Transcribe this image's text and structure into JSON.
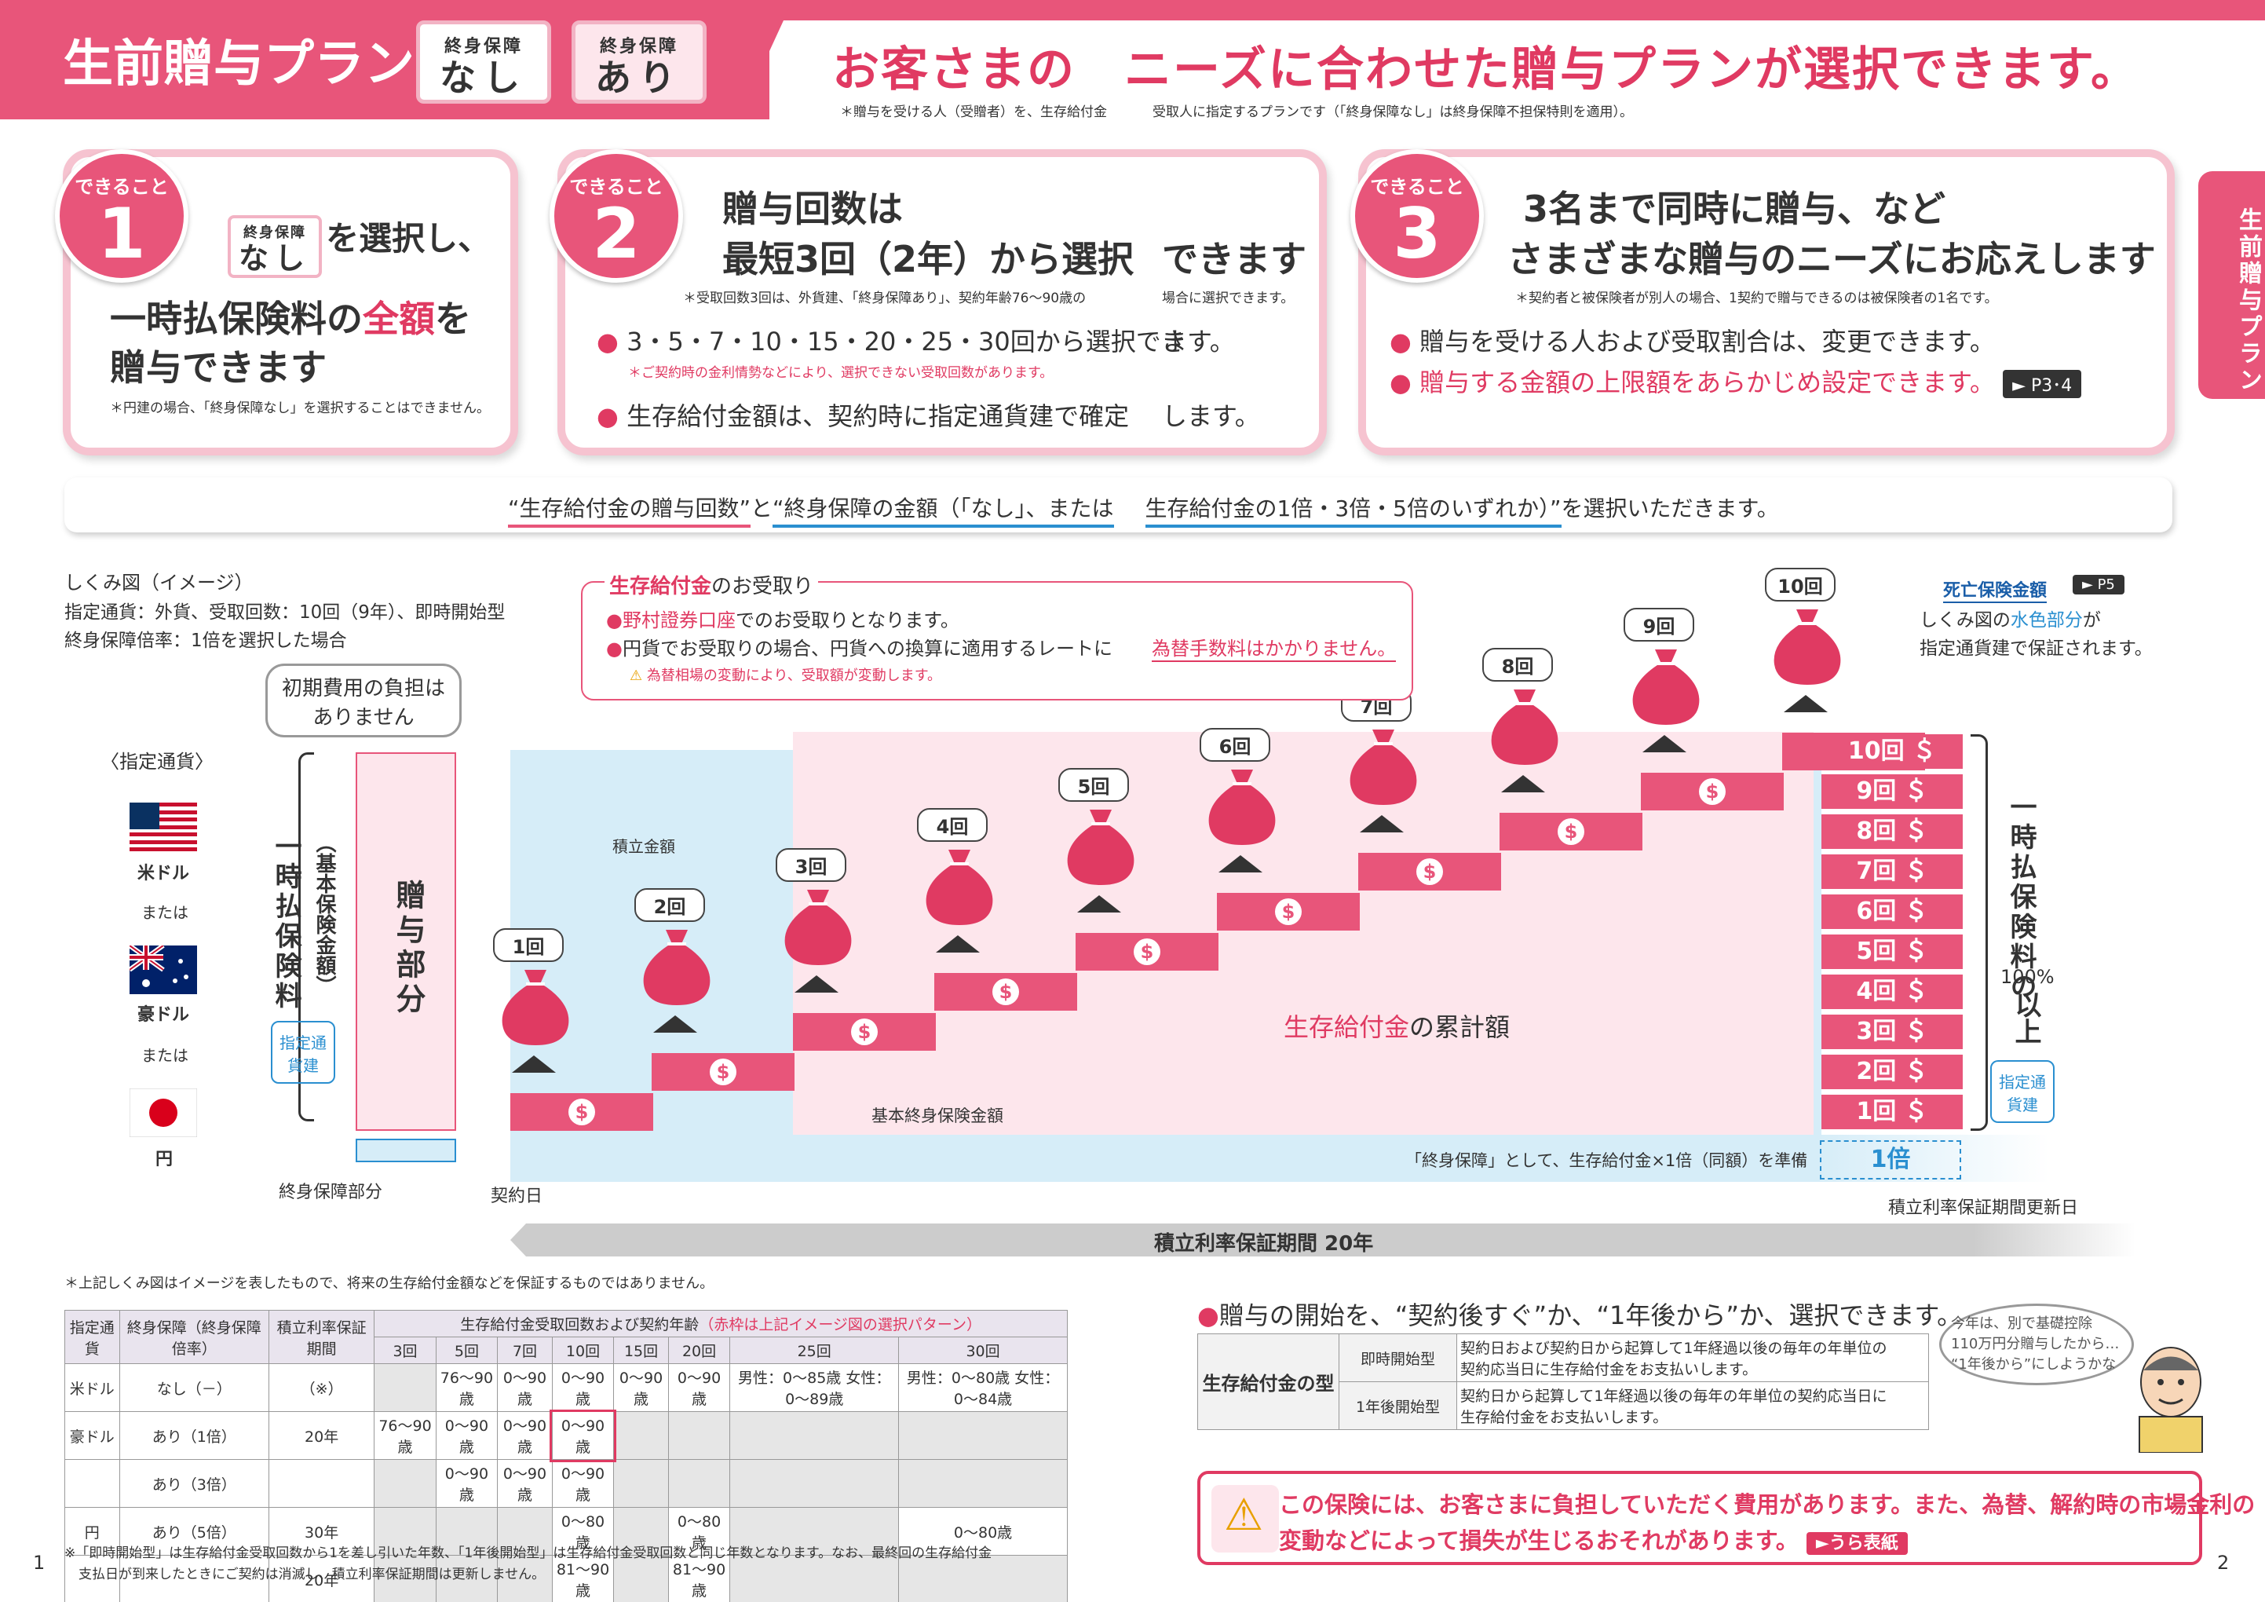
{
  "header": {
    "title": "生前贈与プラン",
    "tag1_small": "終身保障",
    "tag1_big": "なし",
    "tag2_small": "終身保障",
    "tag2_big": "あり",
    "headline": "お客さまの　ニーズに合わせた贈与プランが選択できます。",
    "note1": "＊贈与を受ける人（受贈者）を、生存給付金",
    "note2": "受取人に指定するプランです（「終身保障なし」は終身保障不担保特則を適用）。"
  },
  "side_tab": "生前贈与プラン",
  "cards": [
    {
      "badge": "できること",
      "num": "1",
      "chip_small": "終身保障",
      "chip_big": "なし",
      "line1": "を選択し、",
      "line2a": "一時払保険料の",
      "line2b": "全額",
      "line2c": "を",
      "line3": "贈与できます",
      "note": "＊円建の場合、「終身保障なし」を選択することはできません。"
    },
    {
      "badge": "できること",
      "num": "2",
      "line1": "贈与回数は",
      "line2": "最短3回（2年）から選択",
      "line2b": "できます",
      "note": "＊受取回数3回は、外貨建、「終身保障あり」、契約年齢76～90歳の",
      "note_b": "場合に選択できます。",
      "bullet1": "3・5・7・10・15・20・25・30回から選択でき",
      "bullet1b": "ます。",
      "bullet1_note": "＊ご契約時の金利情勢などにより、選択できない受取回数があります。",
      "bullet2": "生存給付金額は、契約時に指定通貨建で確定",
      "bullet2b": "します。"
    },
    {
      "badge": "できること",
      "num": "3",
      "line1": "3名まで同時に贈与、など",
      "line2": "さまざまな贈与のニーズにお応えします",
      "note": "＊契約者と被保険者が別人の場合、1契約で贈与できるのは被保険者の1名です。",
      "bullet1": "贈与を受ける人および受取割合は、変更できます。",
      "bullet2": "贈与する金額の上限額をあらかじめ設定できます。",
      "ref": "► P3･4"
    }
  ],
  "select_bar": {
    "part1": "“生存給付金の贈与回数”",
    "part2": "と",
    "part3": "“終身保障の金額（「なし」、または",
    "part4": "生存給付金の1倍・3倍・5倍のいずれか）”",
    "part5": "を選択いただきます。"
  },
  "diagram": {
    "caption1": "しくみ図（イメージ）",
    "caption2": "指定通貨：外貨、受取回数：10回（9年）、即時開始型",
    "caption3": "終身保障倍率：1倍を選択した場合",
    "initial_bubble1": "初期費用の負担は",
    "initial_bubble2": "ありません",
    "currency_title": "〈指定通貨〉",
    "currencies": [
      "米ドル",
      "または",
      "豪ドル",
      "または",
      "円"
    ],
    "premium_vertical": "一時払保険料",
    "premium_sub": "（基本保険金額）",
    "designated": "指定通貨建",
    "gift_part": "贈与部分",
    "lifetime_part": "終身保障部分",
    "contract_day": "契約日",
    "accum_label": "積立金額",
    "basic_sum_label": "基本終身保険金額",
    "cumulative_a": "生存給付金",
    "cumulative_b": "の累計額",
    "guarantee_text": "「終身保障」として、生存給付金×1倍（同額）を準備",
    "guarantee_mult": "×1倍",
    "one_x": "1倍",
    "period": "積立利率保証期間 20年",
    "renewal": "積立利率保証期間更新日",
    "receive_title_a": "生存給付金",
    "receive_title_b": "のお受取り",
    "receive_b1a": "野村證券口座",
    "receive_b1b": "でのお受取りとなります。",
    "receive_b2a": "円貨でお受取りの場合、円貨への換算に適用するレートに",
    "receive_b2b": "為替手数料はかかりません。",
    "receive_warn": "為替相場の変動により、受取額が変動します。",
    "death_title": "死亡保険金額",
    "death_ref": "► P5",
    "death_text1a": "しくみ図の",
    "death_text1b": "水色部分",
    "death_text1c": "が",
    "death_text2": "指定通貨建で保証されます。",
    "steps": [
      "1回",
      "2回",
      "3回",
      "4回",
      "5回",
      "6回",
      "7回",
      "8回",
      "9回",
      "10回"
    ],
    "stack": [
      "10回",
      "9回",
      "8回",
      "7回",
      "6回",
      "5回",
      "4回",
      "3回",
      "2回",
      "1回"
    ],
    "right_vertical": "一時払保険料の",
    "right_pct": "100%",
    "right_above": "以上",
    "designated_right": "指定通貨建"
  },
  "disclaimer": "＊上記しくみ図はイメージを表したもので、将来の生存給付金額などを保証するものではありません。",
  "table": {
    "h_currency": "指定通貨",
    "h_guarantee": "終身保障（終身保障倍率）",
    "h_period": "積立利率保証期間",
    "h_group": "生存給付金受取回数および契約年齢",
    "h_group_note": "（赤枠は上記イメージ図の選択パターン）",
    "cols": [
      "3回",
      "5回",
      "7回",
      "10回",
      "15回",
      "20回",
      "25回",
      "30回"
    ],
    "rows": [
      {
        "cur": "米ドル",
        "guar": "なし（－）",
        "period": "（※）",
        "cells": [
          "",
          "76～90歳",
          "0～90歳",
          "0～90歳",
          "0～90歳",
          "0～90歳",
          "男性：0～85歳 女性：0～89歳",
          "男性：0～80歳 女性：0～84歳"
        ]
      },
      {
        "cur": "豪ドル",
        "guar": "あり（1倍）",
        "period": "20年",
        "cells": [
          "76～90歳",
          "0～90歳",
          "0～90歳",
          "0～90歳",
          "",
          "",
          "",
          ""
        ]
      },
      {
        "cur": "",
        "guar": "あり（3倍）",
        "period": "",
        "cells": [
          "",
          "0～90歳",
          "0～90歳",
          "0～90歳",
          "",
          "",
          "",
          ""
        ]
      },
      {
        "cur": "円",
        "guar": "あり（5倍）",
        "period": "30年",
        "cells": [
          "",
          "",
          "",
          "0～80歳",
          "",
          "0～80歳",
          "",
          "0～80歳"
        ]
      },
      {
        "cur": "",
        "guar": "",
        "period": "20年",
        "cells": [
          "",
          "",
          "",
          "81～90歳",
          "",
          "81～90歳",
          "",
          ""
        ]
      }
    ],
    "footnote1": "※「即時開始型」は生存給付金受取回数から1を差し引いた年数、「1年後開始型」は生存給付金受取回数と同じ年数となります。なお、最終回の生存給付金",
    "footnote2": "支払日が到来したときにご契約は消滅し、積立利率保証期間は更新しません。"
  },
  "start": {
    "title": "贈与の開始を、“契約後すぐ”か、“1年後から”か、選択できます。",
    "row_header": "生存給付金の型",
    "type1": "即時開始型",
    "type1_desc1": "契約日および契約日から起算して1年経過以後の毎年の年単位の",
    "type1_desc2": "契約応当日に生存給付金をお支払いします。",
    "type2": "1年後開始型",
    "type2_desc1": "契約日から起算して1年経過以後の毎年の年単位の契約応当日に",
    "type2_desc2": "生存給付金をお支払いします。",
    "speech1": "今年は、別で基礎控除",
    "speech2": "110万円分贈与したから…",
    "speech3": "“1年後から”にしようかな"
  },
  "warning": {
    "line1": "この保険には、お客さまに負担していただく費用があります。また、為替、解約時の市場金利の",
    "line2": "変動などによって損失が生じるおそれがあります。",
    "ref": "►うら表紙"
  },
  "page_left": "1",
  "page_right": "2",
  "colors": {
    "accent": "#e8557a",
    "light_blue": "#d6edf8",
    "light_pink": "#fde6ec"
  }
}
